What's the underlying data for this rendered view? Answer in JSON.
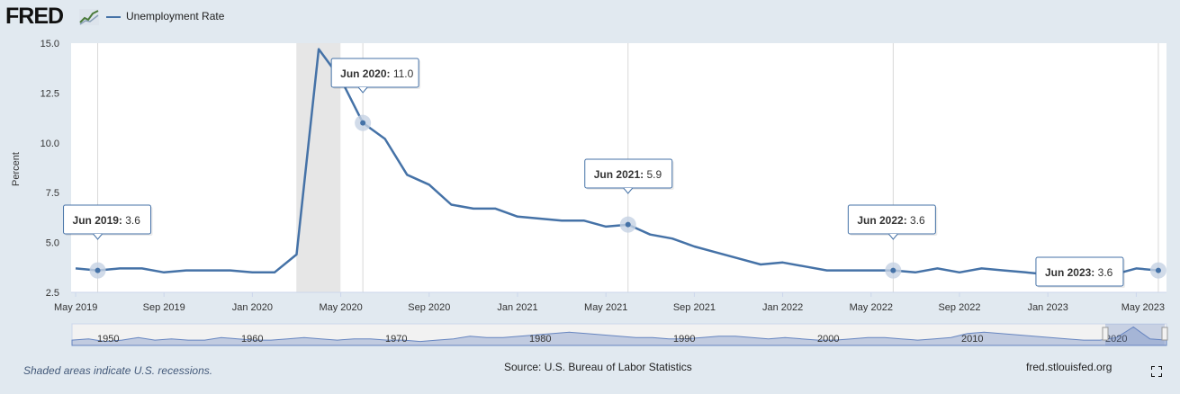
{
  "header": {
    "logo_text": "FRED",
    "legend_label": "Unemployment Rate",
    "series_color": "#4572a7"
  },
  "chart_data": {
    "type": "line",
    "ylabel": "Percent",
    "ylim": [
      2.5,
      15.0
    ],
    "y_ticks": [
      "15.0",
      "12.5",
      "10.0",
      "7.5",
      "5.0",
      "2.5"
    ],
    "y_tick_values": [
      15.0,
      12.5,
      10.0,
      7.5,
      5.0,
      2.5
    ],
    "x_ticks": [
      "May 2019",
      "Sep 2019",
      "Jan 2020",
      "May 2020",
      "Sep 2020",
      "Jan 2021",
      "May 2021",
      "Sep 2021",
      "Jan 2022",
      "May 2022",
      "Sep 2022",
      "Jan 2023",
      "May 2023"
    ],
    "grid": "vertical",
    "recession_shading": {
      "start": "2020-03",
      "end": "2020-04"
    },
    "series": [
      {
        "name": "Unemployment Rate",
        "color": "#4572a7",
        "x": [
          "2019-05",
          "2019-06",
          "2019-07",
          "2019-08",
          "2019-09",
          "2019-10",
          "2019-11",
          "2019-12",
          "2020-01",
          "2020-02",
          "2020-03",
          "2020-04",
          "2020-05",
          "2020-06",
          "2020-07",
          "2020-08",
          "2020-09",
          "2020-10",
          "2020-11",
          "2020-12",
          "2021-01",
          "2021-02",
          "2021-03",
          "2021-04",
          "2021-05",
          "2021-06",
          "2021-07",
          "2021-08",
          "2021-09",
          "2021-10",
          "2021-11",
          "2021-12",
          "2022-01",
          "2022-02",
          "2022-03",
          "2022-04",
          "2022-05",
          "2022-06",
          "2022-07",
          "2022-08",
          "2022-09",
          "2022-10",
          "2022-11",
          "2022-12",
          "2023-01",
          "2023-02",
          "2023-03",
          "2023-04",
          "2023-05",
          "2023-06"
        ],
        "values": [
          3.7,
          3.6,
          3.7,
          3.7,
          3.5,
          3.6,
          3.6,
          3.6,
          3.5,
          3.5,
          4.4,
          14.7,
          13.2,
          11.0,
          10.2,
          8.4,
          7.9,
          6.9,
          6.7,
          6.7,
          6.3,
          6.2,
          6.1,
          6.1,
          5.8,
          5.9,
          5.4,
          5.2,
          4.8,
          4.5,
          4.2,
          3.9,
          4.0,
          3.8,
          3.6,
          3.6,
          3.6,
          3.6,
          3.5,
          3.7,
          3.5,
          3.7,
          3.6,
          3.5,
          3.4,
          3.6,
          3.5,
          3.4,
          3.7,
          3.6
        ]
      }
    ],
    "annotations": [
      {
        "x": "2019-06",
        "bold": "Jun 2019:",
        "value": "3.6"
      },
      {
        "x": "2020-06",
        "bold": "Jun 2020:",
        "value": "11.0"
      },
      {
        "x": "2021-06",
        "bold": "Jun 2021:",
        "value": "5.9"
      },
      {
        "x": "2022-06",
        "bold": "Jun 2022:",
        "value": "3.6"
      },
      {
        "x": "2023-06",
        "bold": "Jun 2023:",
        "value": "3.6"
      }
    ],
    "navigator": {
      "labels": [
        "1950",
        "1960",
        "1970",
        "1980",
        "1990",
        "2000",
        "2010",
        "2020"
      ],
      "values": [
        4,
        5,
        3,
        4,
        6,
        4,
        5,
        4,
        4,
        6,
        5,
        4,
        4,
        5,
        6,
        5,
        4,
        5,
        5,
        4,
        4,
        3,
        4,
        5,
        7,
        6,
        6,
        7,
        8,
        9,
        10,
        9,
        8,
        7,
        6,
        6,
        5,
        5,
        6,
        7,
        7,
        6,
        5,
        6,
        5,
        4,
        4,
        5,
        6,
        6,
        5,
        4,
        5,
        6,
        9,
        10,
        9,
        8,
        7,
        6,
        5,
        4,
        4,
        6,
        14,
        5,
        4
      ]
    }
  },
  "footer": {
    "note": "Shaded areas indicate U.S. recessions.",
    "source": "Source: U.S. Bureau of Labor Statistics",
    "url": "fred.stlouisfed.org"
  }
}
